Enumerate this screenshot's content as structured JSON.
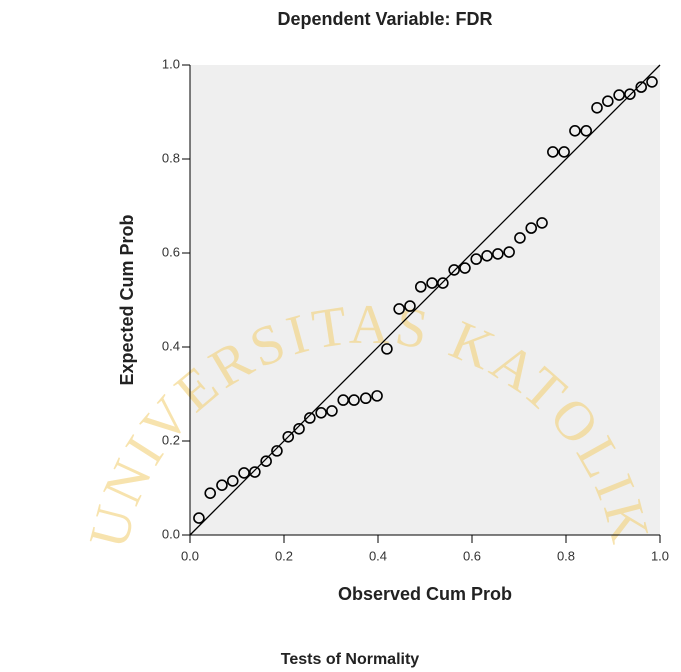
{
  "chart_data": {
    "type": "scatter",
    "title": "Dependent Variable: FDR",
    "x_label": "Observed Cum Prob",
    "y_label": "Expected Cum Prob",
    "footer": "Tests of Normality",
    "watermark": "UNIVERSITAS KATOLIK",
    "color": "#000000",
    "xlim": [
      0,
      1
    ],
    "ylim": [
      0,
      1
    ],
    "xticks": [
      {
        "value": 0,
        "label": "0.0"
      },
      0.2,
      0.4,
      0.6,
      0.8,
      {
        "value": 1,
        "label": "1.0"
      }
    ],
    "yticks": [
      {
        "value": 0,
        "label": "0.0"
      },
      0.2,
      0.4,
      0.6,
      0.8,
      {
        "value": 1,
        "label": "1.0"
      }
    ],
    "x": [
      0.019,
      0.043,
      0.068,
      0.091,
      0.115,
      0.138,
      0.162,
      0.185,
      0.209,
      0.232,
      0.255,
      0.279,
      0.302,
      0.326,
      0.349,
      0.374,
      0.398,
      0.419,
      0.445,
      0.468,
      0.491,
      0.515,
      0.538,
      0.562,
      0.585,
      0.609,
      0.632,
      0.655,
      0.679,
      0.702,
      0.726,
      0.749,
      0.772,
      0.796,
      0.819,
      0.843,
      0.866,
      0.889,
      0.913,
      0.936,
      0.96,
      0.983
    ],
    "values": [
      0.036,
      0.089,
      0.106,
      0.115,
      0.132,
      0.134,
      0.157,
      0.179,
      0.209,
      0.226,
      0.249,
      0.26,
      0.264,
      0.287,
      0.287,
      0.291,
      0.296,
      0.396,
      0.481,
      0.487,
      0.528,
      0.536,
      0.536,
      0.564,
      0.568,
      0.587,
      0.594,
      0.598,
      0.602,
      0.632,
      0.653,
      0.664,
      0.815,
      0.815,
      0.86,
      0.86,
      0.909,
      0.923,
      0.936,
      0.938,
      0.953,
      0.964
    ]
  }
}
